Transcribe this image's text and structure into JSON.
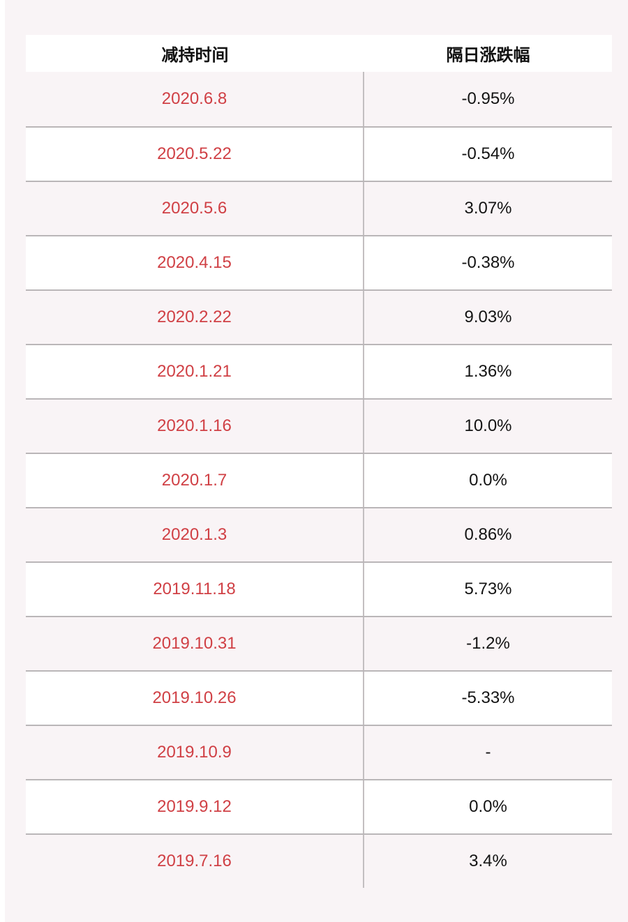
{
  "colors": {
    "page_background": "#f9f4f6",
    "row_white": "#ffffff",
    "date_red": "#d04045",
    "value_black": "#141414",
    "divider_gray": "#bab6b8"
  },
  "chart_data": {
    "type": "table",
    "columns": [
      "减持时间",
      "隔日涨跌幅"
    ],
    "rows": [
      {
        "date": "2020.6.8",
        "change": "-0.95%"
      },
      {
        "date": "2020.5.22",
        "change": "-0.54%"
      },
      {
        "date": "2020.5.6",
        "change": "3.07%"
      },
      {
        "date": "2020.4.15",
        "change": "-0.38%"
      },
      {
        "date": "2020.2.22",
        "change": "9.03%"
      },
      {
        "date": "2020.1.21",
        "change": "1.36%"
      },
      {
        "date": "2020.1.16",
        "change": "10.0%"
      },
      {
        "date": "2020.1.7",
        "change": "0.0%"
      },
      {
        "date": "2020.1.3",
        "change": "0.86%"
      },
      {
        "date": "2019.11.18",
        "change": "5.73%"
      },
      {
        "date": "2019.10.31",
        "change": "-1.2%"
      },
      {
        "date": "2019.10.26",
        "change": "-5.33%"
      },
      {
        "date": "2019.10.9",
        "change": "-"
      },
      {
        "date": "2019.9.12",
        "change": "0.0%"
      },
      {
        "date": "2019.7.16",
        "change": "3.4%"
      }
    ]
  }
}
